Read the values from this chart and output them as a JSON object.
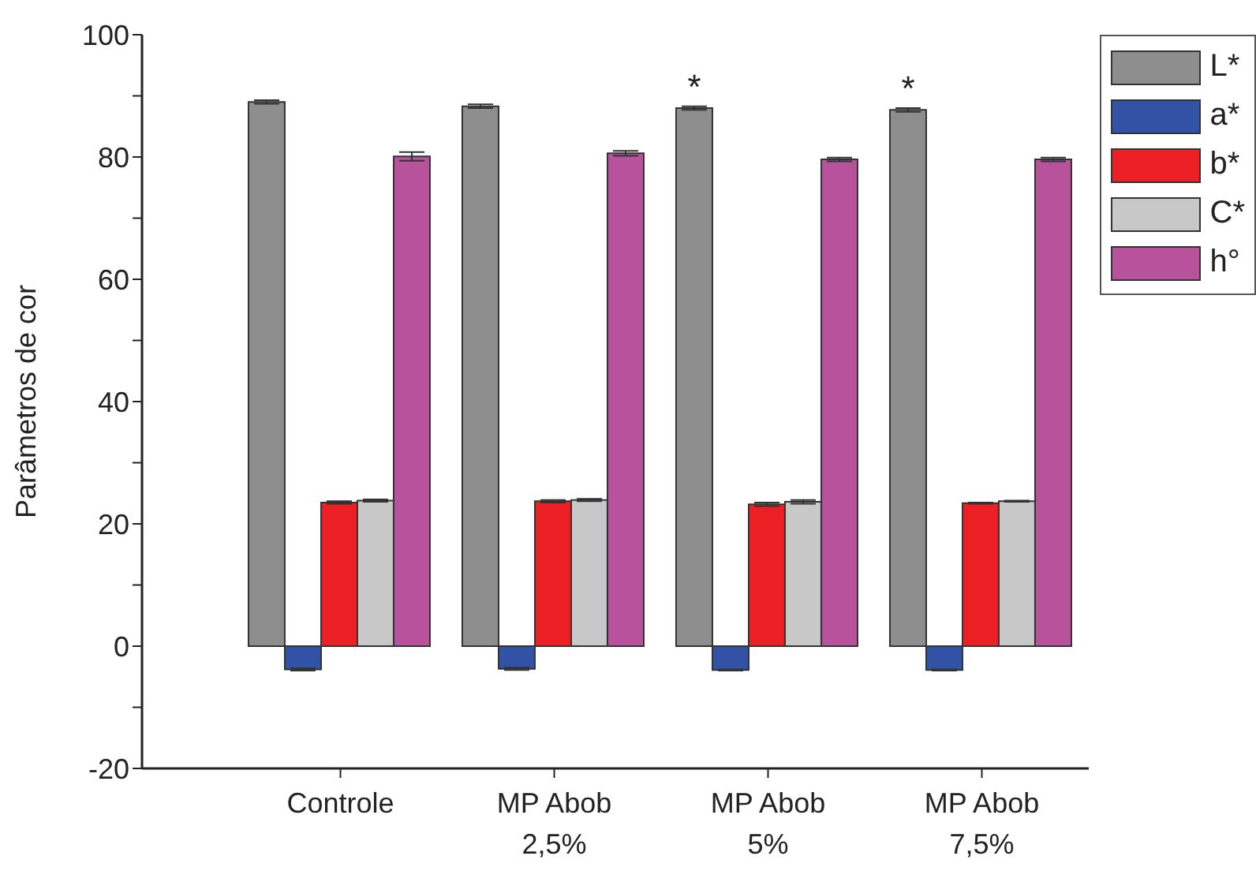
{
  "chart_data": {
    "type": "bar",
    "ylabel": "Parâmetros de cor",
    "categories": [
      "Controle",
      "MP Abob 2,5%",
      "MP Abob 5%",
      "MP Abob 7,5%"
    ],
    "series": [
      {
        "name": "L*",
        "color": "#8f8e8f",
        "values": [
          89.0,
          88.3,
          88.0,
          87.7
        ],
        "errors": [
          0.3,
          0.3,
          0.3,
          0.3
        ],
        "value_labels": [
          null,
          null,
          "*",
          "*"
        ]
      },
      {
        "name": "a*",
        "color": "#3253a5",
        "values": [
          -3.8,
          -3.7,
          -3.9,
          -3.9
        ],
        "errors": [
          0.2,
          0.2,
          0.1,
          0.1
        ]
      },
      {
        "name": "b*",
        "color": "#ec2024",
        "values": [
          23.5,
          23.7,
          23.2,
          23.4
        ],
        "errors": [
          0.2,
          0.2,
          0.3,
          0.1
        ]
      },
      {
        "name": "C*",
        "color": "#c8c8c8",
        "values": [
          23.8,
          23.9,
          23.6,
          23.7
        ],
        "errors": [
          0.2,
          0.2,
          0.3,
          0.1
        ]
      },
      {
        "name": "h°",
        "color": "#b8529c",
        "values": [
          80.1,
          80.6,
          79.6,
          79.6
        ],
        "errors": [
          0.7,
          0.4,
          0.3,
          0.3
        ]
      }
    ],
    "ylim": [
      -20,
      100
    ],
    "yticks": [
      -20,
      {
        "value": -10,
        "label": null
      },
      0,
      {
        "value": 10,
        "label": null
      },
      20,
      {
        "value": 30,
        "label": null
      },
      40,
      {
        "value": 50,
        "label": null
      },
      60,
      {
        "value": 70,
        "label": null
      },
      80,
      {
        "value": 90,
        "label": null
      },
      100
    ],
    "legend": "top right",
    "grid": false
  }
}
